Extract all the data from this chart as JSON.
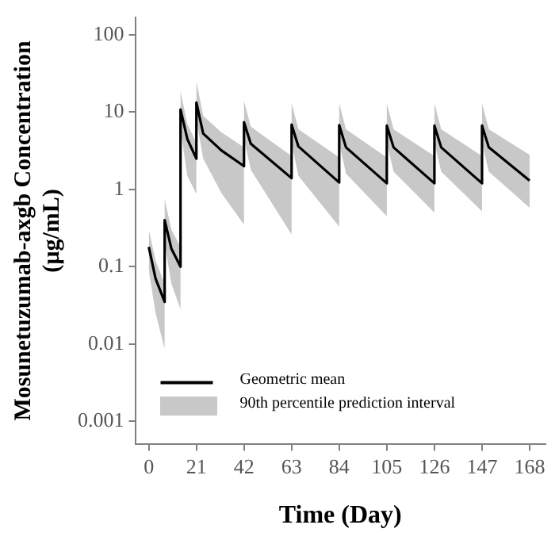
{
  "chart_data": {
    "type": "line",
    "xlabel": "Time (Day)",
    "ylabel": "Mosunetuzumab-axgb Concentration (µg/mL)",
    "log": "y",
    "grid": false,
    "legend": "bottom left",
    "marker": "none",
    "line_style": "solid",
    "xlim": [
      -6,
      175
    ],
    "xticks": [
      0,
      21,
      42,
      63,
      84,
      105,
      126,
      147,
      168
    ],
    "ylim": [
      0.0005,
      170
    ],
    "yticks": [
      0.001,
      0.01,
      0.1,
      1,
      10,
      100
    ],
    "annotations": [
      "90th percentile prediction interval"
    ],
    "series": [
      {
        "name": "Geometric mean",
        "color": "#000000",
        "x": [
          0,
          3,
          7,
          7,
          10,
          14,
          14,
          17,
          21,
          21,
          24,
          32,
          42,
          42,
          45,
          63,
          63,
          66,
          84,
          84,
          87,
          105,
          105,
          108,
          126,
          126,
          129,
          147,
          147,
          150,
          168
        ],
        "values": [
          0.18,
          0.07,
          0.035,
          0.4,
          0.17,
          0.1,
          10.8,
          4.5,
          2.5,
          13.3,
          5.3,
          3.2,
          2.0,
          7.4,
          3.9,
          1.4,
          6.9,
          3.6,
          1.23,
          6.8,
          3.5,
          1.2,
          6.7,
          3.5,
          1.2,
          6.7,
          3.5,
          1.2,
          6.7,
          3.5,
          1.3
        ],
        "lower": [
          0.09,
          0.025,
          0.0086,
          0.2,
          0.06,
          0.028,
          6,
          1.5,
          0.87,
          8,
          2.5,
          0.9,
          0.35,
          4.5,
          1.8,
          0.26,
          4,
          1.5,
          0.33,
          4,
          1.6,
          0.45,
          4,
          1.7,
          0.5,
          4,
          1.7,
          0.52,
          4,
          1.7,
          0.58
        ],
        "upper": [
          0.3,
          0.12,
          0.06,
          0.75,
          0.3,
          0.18,
          18.8,
          7,
          4,
          25,
          9,
          5.5,
          3.5,
          14,
          6.5,
          2.7,
          13,
          6,
          2.6,
          13,
          6,
          2.6,
          13,
          6,
          2.7,
          13,
          6,
          2.7,
          13,
          6,
          2.8
        ]
      }
    ]
  }
}
